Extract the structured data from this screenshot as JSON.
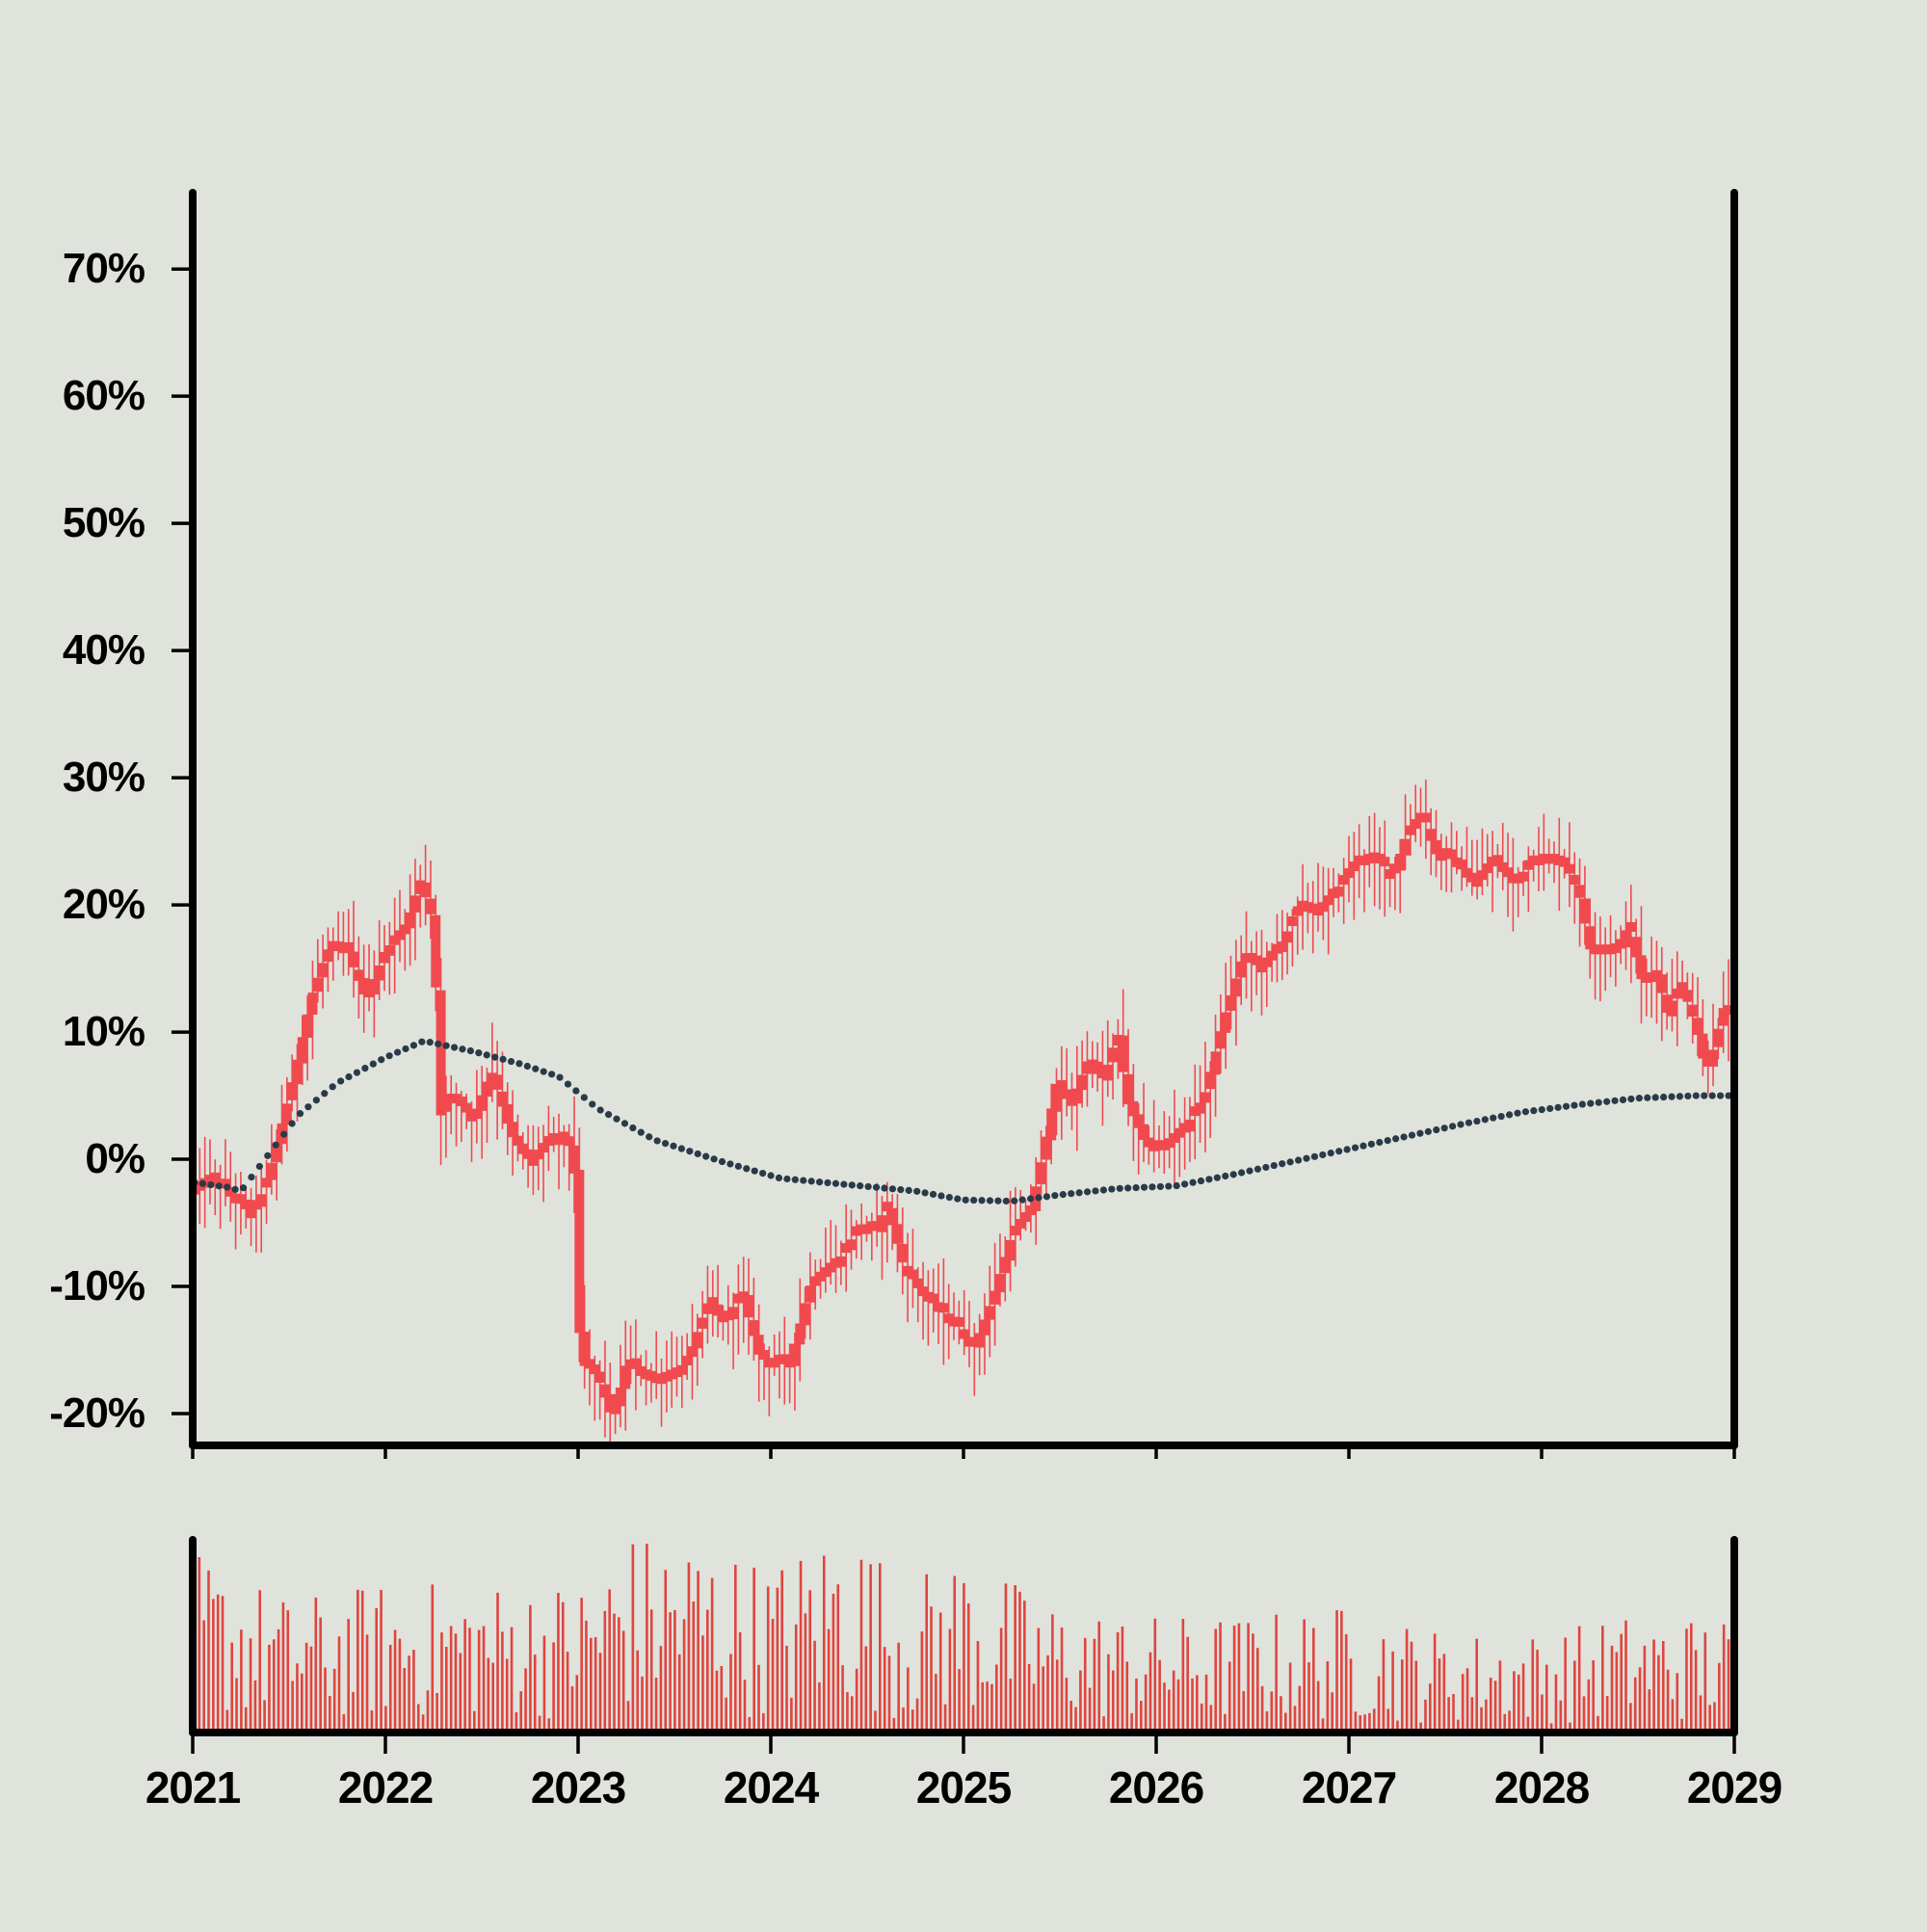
{
  "chart_data": {
    "type": "candlestick",
    "title": "",
    "xlabel": "",
    "ylabel": "",
    "ylim": [
      -22.5,
      76
    ],
    "xlim": [
      2021.0,
      2029.0
    ],
    "grid": false,
    "legend": "none",
    "colors": {
      "background": "#dfe3dc",
      "candle": "#f04a4f",
      "volume": "#e0443f",
      "moving_average": "#2a3a48",
      "axis": "#000000"
    },
    "y_ticks": [
      {
        "value": 70,
        "label": "70%"
      },
      {
        "value": 60,
        "label": "60%"
      },
      {
        "value": 50,
        "label": "50%"
      },
      {
        "value": 40,
        "label": "40%"
      },
      {
        "value": 30,
        "label": "30%"
      },
      {
        "value": 20,
        "label": "20%"
      },
      {
        "value": 10,
        "label": "10%"
      },
      {
        "value": 0,
        "label": "0%"
      },
      {
        "value": -10,
        "label": "-10%"
      },
      {
        "value": -20,
        "label": "-20%"
      }
    ],
    "x_ticks": [
      {
        "value": 2021,
        "label": "2021"
      },
      {
        "value": 2022,
        "label": "2022"
      },
      {
        "value": 2023,
        "label": "2023"
      },
      {
        "value": 2024,
        "label": "2024"
      },
      {
        "value": 2025,
        "label": "2025"
      },
      {
        "value": 2026,
        "label": "2026"
      },
      {
        "value": 2027,
        "label": "2027"
      },
      {
        "value": 2028,
        "label": "2028"
      },
      {
        "value": 2029,
        "label": "2029"
      }
    ],
    "price_path": [
      [
        2021.0,
        -2.5
      ],
      [
        2021.1,
        -1.5
      ],
      [
        2021.2,
        -3.0
      ],
      [
        2021.3,
        -4.5
      ],
      [
        2021.38,
        -2.0
      ],
      [
        2021.5,
        5.0
      ],
      [
        2021.62,
        13.0
      ],
      [
        2021.7,
        16.5
      ],
      [
        2021.8,
        16.5
      ],
      [
        2021.9,
        12.5
      ],
      [
        2022.0,
        16.5
      ],
      [
        2022.1,
        18.0
      ],
      [
        2022.18,
        22.0
      ],
      [
        2022.24,
        19.0
      ],
      [
        2022.26,
        15.0
      ],
      [
        2022.27,
        3.0
      ],
      [
        2022.35,
        5.0
      ],
      [
        2022.45,
        3.0
      ],
      [
        2022.55,
        7.0
      ],
      [
        2022.65,
        2.0
      ],
      [
        2022.75,
        -0.5
      ],
      [
        2022.85,
        1.5
      ],
      [
        2022.95,
        1.5
      ],
      [
        2022.99,
        -2.0
      ],
      [
        2023.01,
        -16.0
      ],
      [
        2023.1,
        -17.0
      ],
      [
        2023.18,
        -20.5
      ],
      [
        2023.25,
        -16.0
      ],
      [
        2023.4,
        -17.5
      ],
      [
        2023.55,
        -16.5
      ],
      [
        2023.68,
        -11.0
      ],
      [
        2023.75,
        -13.0
      ],
      [
        2023.85,
        -10.5
      ],
      [
        2023.95,
        -16.0
      ],
      [
        2024.1,
        -16.0
      ],
      [
        2024.2,
        -10.0
      ],
      [
        2024.35,
        -8.0
      ],
      [
        2024.45,
        -5.5
      ],
      [
        2024.55,
        -5.5
      ],
      [
        2024.6,
        -3.5
      ],
      [
        2024.7,
        -9.0
      ],
      [
        2024.8,
        -11.0
      ],
      [
        2024.95,
        -13.0
      ],
      [
        2025.05,
        -15.0
      ],
      [
        2025.15,
        -11.0
      ],
      [
        2025.25,
        -6.0
      ],
      [
        2025.35,
        -4.0
      ],
      [
        2025.42,
        1.0
      ],
      [
        2025.48,
        6.0
      ],
      [
        2025.55,
        4.0
      ],
      [
        2025.65,
        8.0
      ],
      [
        2025.72,
        6.0
      ],
      [
        2025.8,
        10.0
      ],
      [
        2025.85,
        4.5
      ],
      [
        2025.95,
        1.0
      ],
      [
        2026.05,
        1.0
      ],
      [
        2026.15,
        2.5
      ],
      [
        2026.25,
        5.0
      ],
      [
        2026.35,
        11.0
      ],
      [
        2026.45,
        16.0
      ],
      [
        2026.55,
        15.0
      ],
      [
        2026.65,
        17.0
      ],
      [
        2026.75,
        20.0
      ],
      [
        2026.85,
        19.5
      ],
      [
        2026.95,
        21.5
      ],
      [
        2027.05,
        23.5
      ],
      [
        2027.15,
        23.5
      ],
      [
        2027.22,
        22.0
      ],
      [
        2027.3,
        25.5
      ],
      [
        2027.38,
        27.0
      ],
      [
        2027.45,
        24.0
      ],
      [
        2027.55,
        23.5
      ],
      [
        2027.65,
        21.5
      ],
      [
        2027.75,
        23.5
      ],
      [
        2027.85,
        21.5
      ],
      [
        2027.95,
        23.5
      ],
      [
        2028.05,
        23.5
      ],
      [
        2028.1,
        23.5
      ],
      [
        2028.15,
        22.0
      ],
      [
        2028.2,
        20.5
      ],
      [
        2028.25,
        16.5
      ],
      [
        2028.4,
        16.5
      ],
      [
        2028.45,
        18.5
      ],
      [
        2028.52,
        14.0
      ],
      [
        2028.6,
        14.5
      ],
      [
        2028.65,
        11.5
      ],
      [
        2028.72,
        14.0
      ],
      [
        2028.8,
        10.5
      ],
      [
        2028.85,
        7.0
      ],
      [
        2028.9,
        9.0
      ],
      [
        2028.94,
        12.0
      ],
      [
        2028.97,
        11.0
      ]
    ],
    "moving_average_path": [
      [
        2021.0,
        -1.8
      ],
      [
        2021.18,
        -2.2
      ],
      [
        2021.25,
        -2.5
      ],
      [
        2021.4,
        0.5
      ],
      [
        2021.55,
        3.5
      ],
      [
        2021.75,
        6.0
      ],
      [
        2022.0,
        8.0
      ],
      [
        2022.2,
        9.3
      ],
      [
        2022.45,
        8.5
      ],
      [
        2022.7,
        7.5
      ],
      [
        2022.9,
        6.5
      ],
      [
        2023.1,
        4.0
      ],
      [
        2023.4,
        1.5
      ],
      [
        2023.75,
        -0.2
      ],
      [
        2024.05,
        -1.5
      ],
      [
        2024.4,
        -2.0
      ],
      [
        2024.75,
        -2.5
      ],
      [
        2025.0,
        -3.2
      ],
      [
        2025.25,
        -3.3
      ],
      [
        2025.5,
        -2.8
      ],
      [
        2025.8,
        -2.3
      ],
      [
        2026.1,
        -2.1
      ],
      [
        2026.4,
        -1.2
      ],
      [
        2026.7,
        -0.2
      ],
      [
        2027.0,
        0.8
      ],
      [
        2027.3,
        1.8
      ],
      [
        2027.6,
        2.8
      ],
      [
        2027.9,
        3.7
      ],
      [
        2028.2,
        4.3
      ],
      [
        2028.5,
        4.8
      ],
      [
        2028.8,
        5.0
      ],
      [
        2028.97,
        5.0
      ]
    ],
    "volume_profile": [
      [
        2021.0,
        0.55
      ],
      [
        2021.5,
        0.4
      ],
      [
        2022.0,
        0.45
      ],
      [
        2022.5,
        0.45
      ],
      [
        2023.0,
        0.45
      ],
      [
        2023.25,
        0.6
      ],
      [
        2023.6,
        0.6
      ],
      [
        2024.0,
        0.5
      ],
      [
        2024.4,
        0.65
      ],
      [
        2024.7,
        0.45
      ],
      [
        2025.0,
        0.55
      ],
      [
        2025.4,
        0.4
      ],
      [
        2025.9,
        0.35
      ],
      [
        2026.4,
        0.35
      ],
      [
        2027.0,
        0.38
      ],
      [
        2027.5,
        0.3
      ],
      [
        2028.0,
        0.3
      ],
      [
        2028.4,
        0.35
      ],
      [
        2028.97,
        0.35
      ]
    ]
  }
}
